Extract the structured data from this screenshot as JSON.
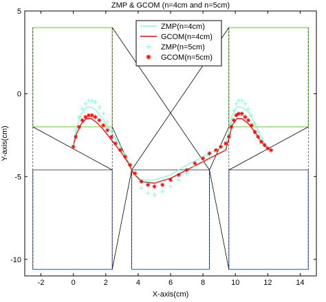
{
  "chart_data": {
    "type": "line",
    "title": "ZMP & GCOM (n=4cm and n=5cm)",
    "xlabel": "X-axis(cm)",
    "ylabel": "Y-axis(cm)",
    "xlim": [
      -3,
      15
    ],
    "ylim": [
      -11,
      5
    ],
    "xticks": [
      "-2",
      "0",
      "2",
      "4",
      "6",
      "8",
      "10",
      "12",
      "14"
    ],
    "xtick_values": [
      -2,
      0,
      2,
      4,
      6,
      8,
      10,
      12,
      14
    ],
    "yticks": [
      "5",
      "0",
      "-5",
      "-10"
    ],
    "ytick_values": [
      5,
      0,
      -5,
      -10
    ],
    "grid": false,
    "legend_position": "top-center",
    "colors": {
      "zmp": "#7fffd4",
      "gcom": "#ff0000",
      "footprint_green": "#66cc33",
      "footprint_blue": "#3355dd",
      "guide": "#000000"
    },
    "footprints": [
      {
        "color": "green",
        "x": [
          -2.5,
          2.4
        ],
        "y": [
          -2,
          4
        ]
      },
      {
        "color": "green",
        "x": [
          9.6,
          14.5
        ],
        "y": [
          -2,
          4
        ]
      },
      {
        "color": "blue",
        "x": [
          -2.5,
          2.4
        ],
        "y": [
          -10.6,
          -4.6
        ]
      },
      {
        "color": "blue",
        "x": [
          3.6,
          8.4
        ],
        "y": [
          -10.6,
          -4.6
        ]
      },
      {
        "color": "blue",
        "x": [
          9.6,
          14.5
        ],
        "y": [
          -10.6,
          -4.6
        ]
      }
    ],
    "guides": [
      {
        "x": [
          2.4,
          8.4
        ],
        "y": [
          4,
          -4.6
        ]
      },
      {
        "x": [
          9.6,
          3.6
        ],
        "y": [
          4,
          -4.6
        ]
      },
      {
        "x": [
          -2.5,
          2.4
        ],
        "y": [
          -2,
          -4.6
        ]
      },
      {
        "x": [
          2.4,
          3.6
        ],
        "y": [
          -2,
          -4.6
        ]
      },
      {
        "x": [
          2.4,
          3.6
        ],
        "y": [
          -10.6,
          -4.6
        ]
      },
      {
        "x": [
          8.4,
          9.6
        ],
        "y": [
          -4.6,
          -2
        ]
      },
      {
        "x": [
          8.4,
          9.6
        ],
        "y": [
          -4.6,
          -10.6
        ]
      },
      {
        "x": [
          14.5,
          9.6
        ],
        "y": [
          -2,
          -4.6
        ]
      }
    ],
    "series": [
      {
        "name": "ZMP(n=4cm)",
        "style": "line",
        "color": "#7fffd4",
        "x": [
          0.0,
          0.2,
          0.5,
          0.8,
          1.1,
          1.4,
          1.8,
          2.2,
          2.6,
          3.0,
          3.4,
          3.7,
          4.2,
          5.0,
          6.0,
          7.0,
          8.0,
          8.6,
          9.0,
          9.4,
          9.6,
          9.8,
          10.1,
          10.4,
          10.8,
          11.2,
          11.6,
          12.0
        ],
        "y": [
          -3.1,
          -2.0,
          -1.2,
          -0.8,
          -0.8,
          -1.0,
          -1.5,
          -2.1,
          -2.7,
          -3.4,
          -4.1,
          -4.8,
          -5.2,
          -5.2,
          -4.9,
          -4.3,
          -3.8,
          -3.5,
          -3.3,
          -3.1,
          -2.2,
          -1.3,
          -0.8,
          -0.8,
          -1.1,
          -1.8,
          -2.6,
          -3.3
        ]
      },
      {
        "name": "GCOM(n=4cm)",
        "style": "line",
        "color": "#ff0000",
        "x": [
          0.0,
          0.2,
          0.5,
          0.8,
          1.1,
          1.4,
          1.8,
          2.2,
          2.6,
          3.0,
          3.4,
          3.7,
          4.2,
          5.0,
          6.0,
          7.0,
          8.0,
          8.6,
          9.0,
          9.4,
          9.6,
          9.8,
          10.1,
          10.4,
          10.8,
          11.2,
          11.6,
          12.0
        ],
        "y": [
          -3.1,
          -2.4,
          -1.8,
          -1.5,
          -1.5,
          -1.7,
          -2.1,
          -2.6,
          -3.1,
          -3.6,
          -4.2,
          -4.8,
          -5.3,
          -5.4,
          -5.1,
          -4.6,
          -4.1,
          -3.8,
          -3.6,
          -3.4,
          -2.7,
          -1.9,
          -1.5,
          -1.5,
          -1.8,
          -2.3,
          -2.9,
          -3.3
        ]
      },
      {
        "name": "ZMP(n=5cm)",
        "style": "markers",
        "marker": "+",
        "color": "#7fffd4",
        "x": [
          0.0,
          0.15,
          0.35,
          0.55,
          0.75,
          0.95,
          1.15,
          1.35,
          1.6,
          1.85,
          2.1,
          2.35,
          2.6,
          2.9,
          3.2,
          3.5,
          3.8,
          4.2,
          4.6,
          5.0,
          5.5,
          6.0,
          6.5,
          7.0,
          7.5,
          8.0,
          8.4,
          8.8,
          9.1,
          9.4,
          9.6,
          9.75,
          9.9,
          10.05,
          10.2,
          10.4,
          10.6,
          10.8,
          11.0,
          11.2,
          11.4,
          11.6,
          11.8,
          12.0,
          12.2
        ],
        "y": [
          -3.1,
          -2.2,
          -1.4,
          -0.9,
          -0.6,
          -0.4,
          -0.4,
          -0.5,
          -0.8,
          -1.2,
          -1.7,
          -2.2,
          -2.7,
          -3.2,
          -3.7,
          -4.3,
          -4.9,
          -5.7,
          -6.0,
          -6.1,
          -5.9,
          -5.6,
          -5.2,
          -4.8,
          -4.4,
          -4.0,
          -3.7,
          -3.4,
          -3.2,
          -3.0,
          -2.6,
          -1.8,
          -1.0,
          -0.6,
          -0.4,
          -0.4,
          -0.6,
          -0.9,
          -1.3,
          -1.8,
          -2.3,
          -2.8,
          -3.1,
          -3.3,
          -3.5
        ]
      },
      {
        "name": "GCOM(n=5cm)",
        "style": "markers",
        "marker": "*",
        "color": "#ff0000",
        "x": [
          0.0,
          0.15,
          0.35,
          0.55,
          0.75,
          0.95,
          1.15,
          1.35,
          1.6,
          1.85,
          2.1,
          2.35,
          2.6,
          2.9,
          3.2,
          3.5,
          3.8,
          4.2,
          4.6,
          5.0,
          5.5,
          6.0,
          6.5,
          7.0,
          7.5,
          8.0,
          8.4,
          8.8,
          9.1,
          9.4,
          9.6,
          9.75,
          9.9,
          10.05,
          10.2,
          10.4,
          10.6,
          10.8,
          11.0,
          11.2,
          11.4,
          11.6,
          11.8,
          12.0,
          12.2
        ],
        "y": [
          -3.2,
          -2.6,
          -2.0,
          -1.6,
          -1.4,
          -1.3,
          -1.3,
          -1.4,
          -1.6,
          -1.9,
          -2.2,
          -2.6,
          -3.0,
          -3.4,
          -3.8,
          -4.3,
          -4.8,
          -5.3,
          -5.5,
          -5.6,
          -5.5,
          -5.2,
          -4.9,
          -4.6,
          -4.2,
          -3.9,
          -3.6,
          -3.4,
          -3.2,
          -3.0,
          -2.6,
          -2.0,
          -1.6,
          -1.3,
          -1.2,
          -1.2,
          -1.4,
          -1.6,
          -1.9,
          -2.3,
          -2.6,
          -2.9,
          -3.1,
          -3.3,
          -3.4
        ]
      }
    ]
  }
}
